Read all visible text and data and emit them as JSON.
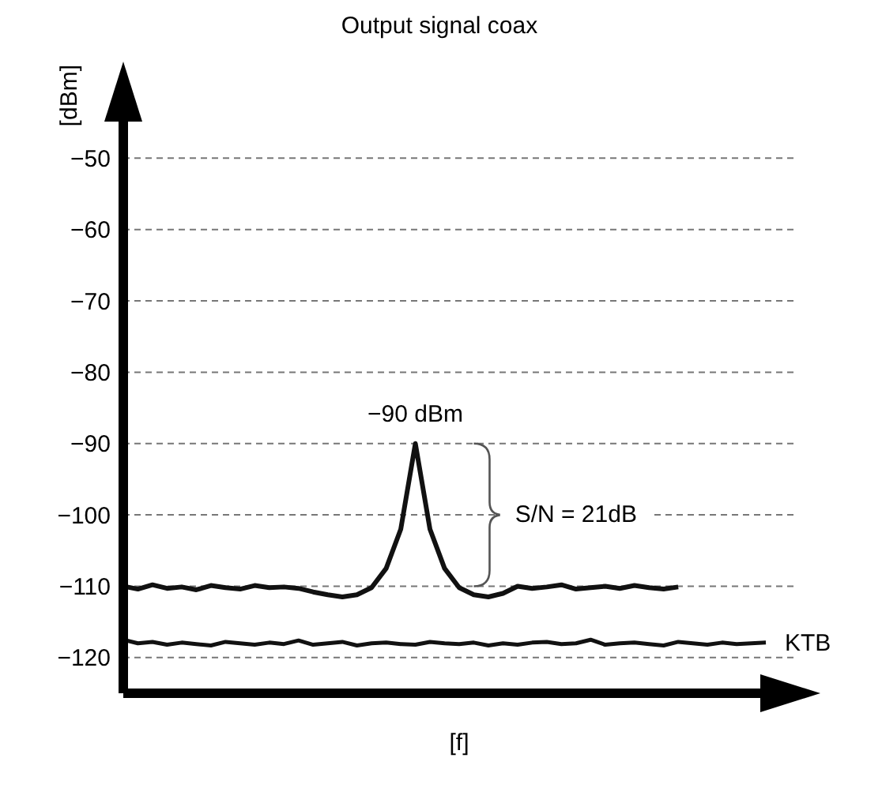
{
  "chart_data": {
    "type": "line",
    "title": "Output signal coax",
    "xlabel": "[f]",
    "ylabel": "[dBm]",
    "categories": [
      null,
      null,
      null,
      null,
      null,
      null,
      null,
      null,
      null,
      null,
      null,
      null,
      null,
      null,
      null,
      null,
      null,
      null,
      null,
      null,
      null,
      null,
      null,
      null,
      null,
      null,
      null,
      null,
      null,
      null,
      null,
      null,
      null,
      null,
      null,
      null,
      null,
      null,
      null,
      null,
      null,
      null,
      null,
      null,
      null
    ],
    "series": [
      {
        "color": "#111111",
        "values": [
          -110,
          -110.4,
          -109.8,
          -110.3,
          -110.1,
          -110.5,
          -109.9,
          -110.2,
          -110.4,
          -109.9,
          -110.2,
          -110.1,
          -110.3,
          -110.8,
          -111.2,
          -111.5,
          -111.2,
          -110.2,
          -107.5,
          -102,
          -90,
          -102,
          -107.5,
          -110.2,
          -111.2,
          -111.5,
          -111,
          -110,
          -110.3,
          -110.1,
          -109.8,
          -110.4,
          -110.2,
          -110,
          -110.3,
          -109.9,
          -110.2,
          -110.4,
          -110.1,
          null,
          null,
          null,
          null,
          null,
          null
        ]
      },
      {
        "name": "KTB",
        "color": "#111111",
        "values": [
          -117.5,
          -118,
          -117.8,
          -118.2,
          -117.9,
          -118.1,
          -118.3,
          -117.8,
          -118,
          -118.2,
          -117.9,
          -118.1,
          -117.6,
          -118.2,
          -118,
          -117.8,
          -118.3,
          -118,
          -117.9,
          -118.1,
          -118.2,
          -117.8,
          -118,
          -118.1,
          -117.9,
          -118.3,
          -118,
          -118.2,
          -117.9,
          -117.8,
          -118.1,
          -118,
          -117.5,
          -118.2,
          -118,
          -117.9,
          -118.1,
          -118.3,
          -117.8,
          -118,
          -118.2,
          -117.9,
          -118.1,
          -118,
          -117.9
        ]
      }
    ],
    "ylim": [
      -125,
      -40
    ],
    "yticks": [
      -50,
      -60,
      -70,
      -80,
      -90,
      -100,
      -110,
      -120
    ],
    "grid": "y",
    "tick_labels": "y",
    "marker": "none",
    "line_style": "solid",
    "annotations": [
      {
        "text": "−90 dBm",
        "y": -90
      },
      "S/N = 21dB"
    ]
  }
}
